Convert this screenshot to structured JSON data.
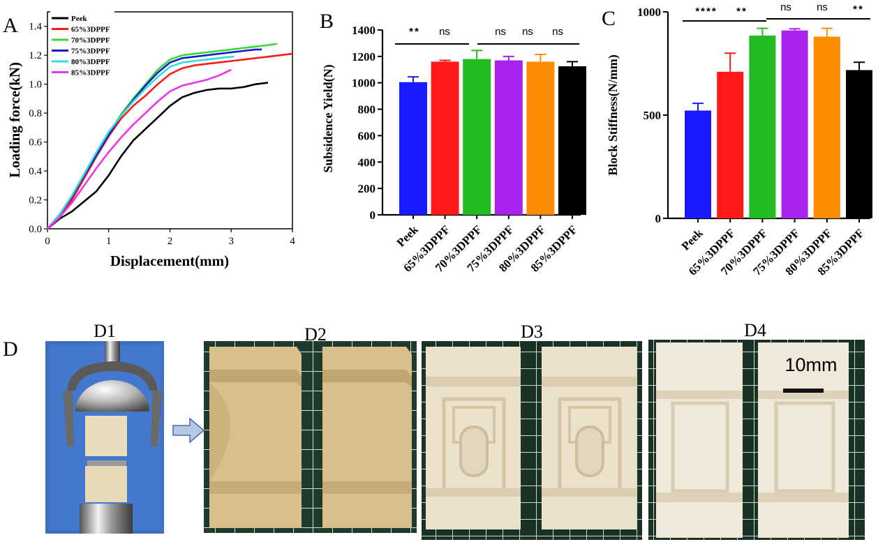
{
  "chart_data": [
    {
      "panel": "A",
      "type": "line",
      "xlabel": "Displacement(mm)",
      "ylabel": "Loading force(kN)",
      "xlim": [
        0,
        4
      ],
      "ylim": [
        0,
        1.5
      ],
      "xticks": [
        "0",
        "1",
        "2",
        "3",
        "4"
      ],
      "yticks": [
        "0.0",
        "0.2",
        "0.4",
        "0.6",
        "0.8",
        "1.0",
        "1.2",
        "1.4"
      ],
      "legend_position": "top-left",
      "series": [
        {
          "name": "Peek",
          "color": "#000000",
          "points": [
            [
              0,
              0
            ],
            [
              0.2,
              0.07
            ],
            [
              0.4,
              0.12
            ],
            [
              0.6,
              0.19
            ],
            [
              0.8,
              0.26
            ],
            [
              1.0,
              0.37
            ],
            [
              1.2,
              0.5
            ],
            [
              1.4,
              0.61
            ],
            [
              1.6,
              0.69
            ],
            [
              1.8,
              0.77
            ],
            [
              2.0,
              0.85
            ],
            [
              2.2,
              0.91
            ],
            [
              2.4,
              0.94
            ],
            [
              2.6,
              0.96
            ],
            [
              2.8,
              0.97
            ],
            [
              3.0,
              0.97
            ],
            [
              3.2,
              0.98
            ],
            [
              3.4,
              1.0
            ],
            [
              3.6,
              1.01
            ]
          ]
        },
        {
          "name": "65%3DPPF",
          "color": "#ff1a1a",
          "points": [
            [
              0,
              0
            ],
            [
              0.2,
              0.09
            ],
            [
              0.4,
              0.2
            ],
            [
              0.6,
              0.35
            ],
            [
              0.8,
              0.5
            ],
            [
              1.0,
              0.64
            ],
            [
              1.2,
              0.76
            ],
            [
              1.4,
              0.85
            ],
            [
              1.6,
              0.92
            ],
            [
              1.8,
              1.0
            ],
            [
              2.0,
              1.07
            ],
            [
              2.2,
              1.11
            ],
            [
              2.4,
              1.13
            ],
            [
              2.6,
              1.14
            ],
            [
              2.8,
              1.15
            ],
            [
              3.0,
              1.16
            ],
            [
              3.2,
              1.17
            ],
            [
              3.4,
              1.18
            ],
            [
              3.6,
              1.19
            ],
            [
              3.8,
              1.2
            ],
            [
              4.0,
              1.21
            ]
          ]
        },
        {
          "name": "70%3DPPF",
          "color": "#33dd33",
          "points": [
            [
              0,
              0
            ],
            [
              0.2,
              0.1
            ],
            [
              0.4,
              0.23
            ],
            [
              0.6,
              0.38
            ],
            [
              0.8,
              0.52
            ],
            [
              1.0,
              0.66
            ],
            [
              1.2,
              0.79
            ],
            [
              1.4,
              0.9
            ],
            [
              1.6,
              1.0
            ],
            [
              1.8,
              1.1
            ],
            [
              2.0,
              1.17
            ],
            [
              2.2,
              1.2
            ],
            [
              2.4,
              1.21
            ],
            [
              2.6,
              1.22
            ],
            [
              2.8,
              1.23
            ],
            [
              3.0,
              1.24
            ],
            [
              3.2,
              1.25
            ],
            [
              3.4,
              1.26
            ],
            [
              3.6,
              1.27
            ],
            [
              3.75,
              1.28
            ]
          ]
        },
        {
          "name": "75%3DPPF",
          "color": "#1a1acc",
          "points": [
            [
              0,
              0
            ],
            [
              0.2,
              0.1
            ],
            [
              0.4,
              0.22
            ],
            [
              0.6,
              0.37
            ],
            [
              0.8,
              0.51
            ],
            [
              1.0,
              0.65
            ],
            [
              1.2,
              0.78
            ],
            [
              1.4,
              0.89
            ],
            [
              1.6,
              0.99
            ],
            [
              1.8,
              1.08
            ],
            [
              2.0,
              1.15
            ],
            [
              2.2,
              1.18
            ],
            [
              2.4,
              1.19
            ],
            [
              2.6,
              1.2
            ],
            [
              2.8,
              1.21
            ],
            [
              3.0,
              1.22
            ],
            [
              3.2,
              1.23
            ],
            [
              3.4,
              1.24
            ],
            [
              3.5,
              1.24
            ]
          ]
        },
        {
          "name": "80%3DPPF",
          "color": "#33dddd",
          "points": [
            [
              0,
              0
            ],
            [
              0.2,
              0.1
            ],
            [
              0.4,
              0.23
            ],
            [
              0.6,
              0.38
            ],
            [
              0.8,
              0.53
            ],
            [
              1.0,
              0.67
            ],
            [
              1.2,
              0.78
            ],
            [
              1.4,
              0.88
            ],
            [
              1.6,
              0.97
            ],
            [
              1.8,
              1.05
            ],
            [
              2.0,
              1.12
            ],
            [
              2.2,
              1.15
            ],
            [
              2.4,
              1.16
            ],
            [
              2.6,
              1.17
            ],
            [
              2.8,
              1.18
            ],
            [
              3.0,
              1.19
            ],
            [
              3.05,
              1.19
            ]
          ]
        },
        {
          "name": "85%3DPPF",
          "color": "#ee33ee",
          "points": [
            [
              0,
              0
            ],
            [
              0.2,
              0.08
            ],
            [
              0.4,
              0.18
            ],
            [
              0.6,
              0.3
            ],
            [
              0.8,
              0.42
            ],
            [
              1.0,
              0.53
            ],
            [
              1.2,
              0.63
            ],
            [
              1.4,
              0.72
            ],
            [
              1.6,
              0.8
            ],
            [
              1.8,
              0.88
            ],
            [
              2.0,
              0.95
            ],
            [
              2.2,
              0.99
            ],
            [
              2.4,
              1.01
            ],
            [
              2.6,
              1.03
            ],
            [
              2.8,
              1.06
            ],
            [
              3.0,
              1.1
            ]
          ]
        }
      ]
    },
    {
      "panel": "B",
      "type": "bar",
      "ylabel": "Subsidence Yield(N)",
      "ylim": [
        0,
        1400
      ],
      "yticks": [
        "0",
        "200",
        "400",
        "600",
        "800",
        "1000",
        "1200",
        "1400"
      ],
      "categories": [
        "Peek",
        "65%3DPPF",
        "70%3DPPF",
        "75%3DPPF",
        "80%3DPPF",
        "85%3DPPF"
      ],
      "values": [
        1005,
        1160,
        1180,
        1170,
        1160,
        1125
      ],
      "errors": [
        40,
        10,
        65,
        30,
        55,
        35
      ],
      "colors": [
        "#1a1aff",
        "#ff1a1a",
        "#22bb22",
        "#aa22ee",
        "#ff8c00",
        "#000000"
      ],
      "significance": [
        "**",
        "ns",
        "ns",
        "ns",
        "ns"
      ]
    },
    {
      "panel": "C",
      "type": "bar",
      "ylabel": "Block Stiffness(N/mm)",
      "ylim": [
        0,
        1000
      ],
      "yticks": [
        "0",
        "500",
        "1000"
      ],
      "categories": [
        "Peek",
        "65%3DPPF",
        "70%3DPPF",
        "75%3DPPF",
        "80%3DPPF",
        "85%3DPPF"
      ],
      "values": [
        522,
        710,
        885,
        910,
        880,
        718
      ],
      "errors": [
        35,
        90,
        35,
        8,
        40,
        38
      ],
      "colors": [
        "#1a1aff",
        "#ff1a1a",
        "#22bb22",
        "#aa22ee",
        "#ff8c00",
        "#000000"
      ],
      "significance": [
        "****",
        "**",
        "ns",
        "ns",
        "**"
      ]
    }
  ],
  "panels": {
    "a": "A",
    "b": "B",
    "c": "C",
    "d": "D"
  },
  "photos": {
    "d1": "D1",
    "d2": "D2",
    "d3": "D3",
    "d4": "D4",
    "scale_bar": "10mm"
  }
}
